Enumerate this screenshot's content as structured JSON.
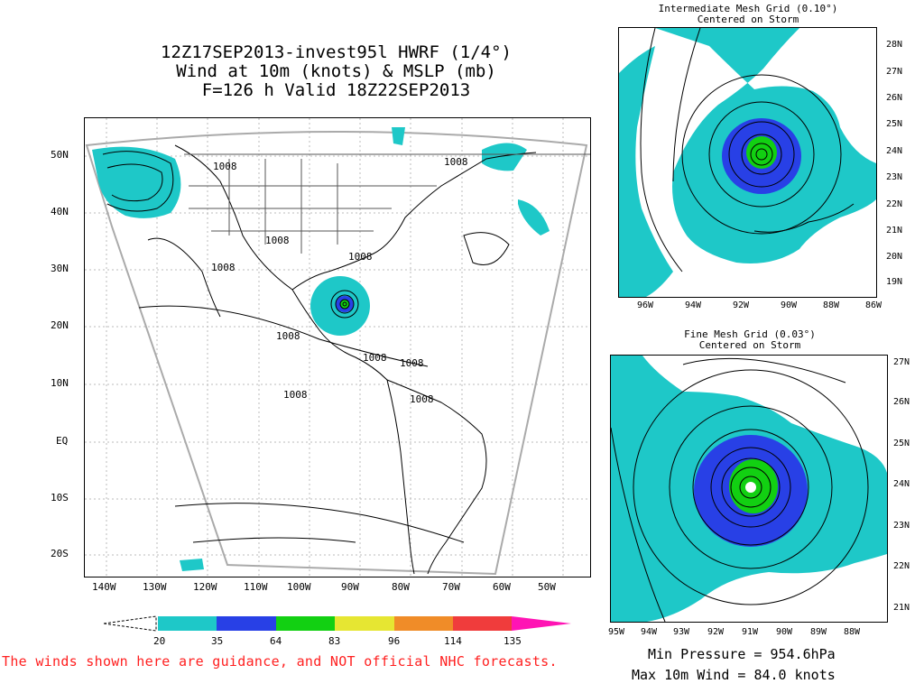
{
  "header": {
    "line1": "12Z17SEP2013-invest95l HWRF (1/4°)",
    "line2": "Wind at 10m (knots) & MSLP (mb)",
    "line3": "F=126 h Valid 18Z22SEP2013"
  },
  "main_map": {
    "lat_labels": [
      "50N",
      "40N",
      "30N",
      "20N",
      "10N",
      "EQ",
      "10S",
      "20S"
    ],
    "lon_labels": [
      "140W",
      "130W",
      "120W",
      "110W",
      "100W",
      "90W",
      "80W",
      "70W",
      "60W",
      "50W"
    ],
    "isobar_labels": [
      "1008",
      "1008",
      "1008",
      "1008",
      "1008",
      "1008",
      "1008",
      "1008",
      "1008",
      "1008"
    ]
  },
  "intermediate_panel": {
    "title_line1": "Intermediate Mesh Grid (0.10°)",
    "title_line2": "Centered on Storm",
    "lat_labels": [
      "28N",
      "27N",
      "26N",
      "25N",
      "24N",
      "23N",
      "22N",
      "21N",
      "20N",
      "19N"
    ],
    "lon_labels": [
      "96W",
      "94W",
      "92W",
      "90W",
      "88W",
      "86W"
    ]
  },
  "fine_panel": {
    "title_line1": "Fine Mesh Grid (0.03°)",
    "title_line2": "Centered on Storm",
    "lat_labels": [
      "27N",
      "26N",
      "25N",
      "24N",
      "23N",
      "22N",
      "21N"
    ],
    "lon_labels": [
      "95W",
      "94W",
      "93W",
      "92W",
      "91W",
      "90W",
      "89W",
      "88W"
    ]
  },
  "colorbar": {
    "labels": [
      "20",
      "35",
      "64",
      "83",
      "96",
      "114",
      "135"
    ],
    "colors": [
      "#1ec8c8",
      "#2840e6",
      "#12d012",
      "#e6e632",
      "#f08c28",
      "#f03c3c",
      "#ff14b4"
    ]
  },
  "disclaimer": "The winds shown here are guidance, and NOT official NHC forecasts.",
  "stats": {
    "min_pressure": "Min Pressure = 954.6hPa",
    "max_wind": "Max 10m Wind = 84.0 knots"
  }
}
